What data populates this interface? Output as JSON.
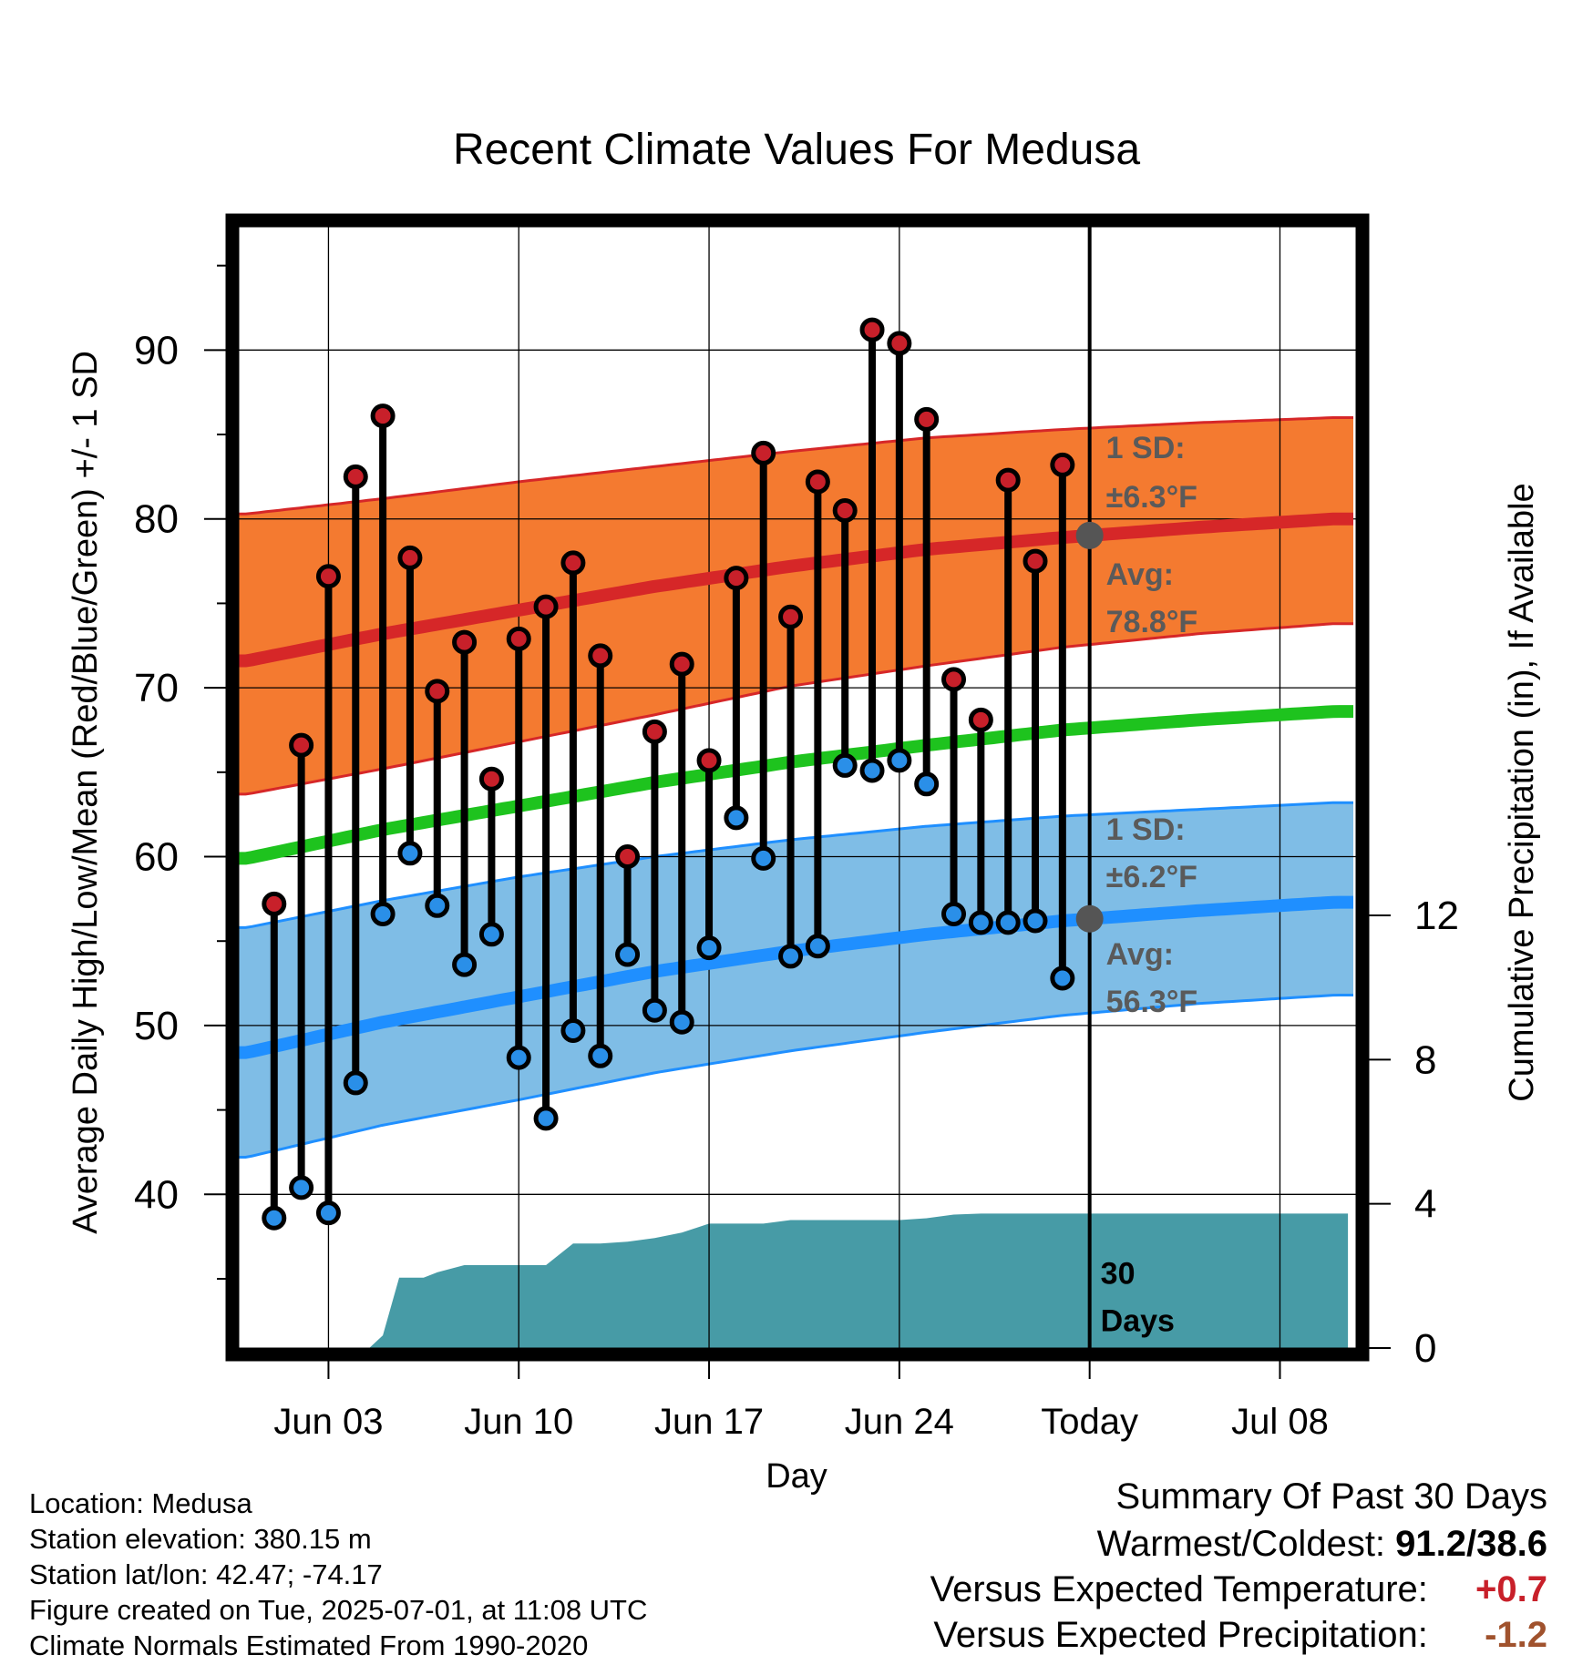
{
  "chart_data": {
    "type": "line",
    "title": "Recent Climate Values For Medusa",
    "xlabel": "Day",
    "ylabel": "Average Daily High/Low/Mean (Red/Blue/Green) +/- 1 SD",
    "y2label": "Cumulative Precipitation (in), If Available",
    "x_tick_labels": [
      "Jun 03",
      "Jun 10",
      "Jun 17",
      "Jun 24",
      "Today",
      "Jul 08"
    ],
    "x_tick_days": [
      3,
      10,
      17,
      24,
      31,
      38
    ],
    "x_range": [
      -0.3,
      40.8
    ],
    "ylim": [
      30.9,
      97.3
    ],
    "y_ticks": [
      40,
      50,
      60,
      70,
      80,
      90
    ],
    "y2lim": [
      0,
      31.1
    ],
    "y2_ticks": [
      0,
      4,
      8,
      12
    ],
    "grid": true,
    "today_day": 31,
    "observed_days": [
      1,
      2,
      3,
      4,
      5,
      6,
      7,
      8,
      9,
      10,
      11,
      12,
      13,
      14,
      15,
      16,
      17,
      18,
      19,
      20,
      21,
      22,
      23,
      24,
      25,
      26,
      27,
      28,
      29,
      30
    ],
    "observed_high": [
      57.2,
      66.6,
      76.6,
      82.5,
      86.1,
      77.7,
      69.8,
      72.7,
      64.6,
      72.9,
      74.8,
      77.4,
      71.9,
      60.0,
      67.4,
      71.4,
      65.7,
      76.5,
      83.9,
      74.2,
      82.2,
      80.5,
      91.2,
      90.4,
      85.9,
      70.5,
      68.1,
      82.3,
      77.5,
      83.2
    ],
    "observed_low": [
      38.6,
      40.4,
      38.9,
      46.6,
      56.6,
      60.2,
      57.1,
      53.6,
      55.4,
      48.1,
      44.5,
      49.7,
      48.2,
      54.2,
      50.9,
      50.2,
      54.6,
      62.3,
      59.9,
      54.1,
      54.7,
      65.4,
      65.1,
      65.7,
      64.3,
      56.6,
      56.1,
      56.1,
      56.2,
      52.8
    ],
    "normals": {
      "days": [
        0,
        5,
        10,
        15,
        20,
        25,
        30,
        35,
        40
      ],
      "avg_high": [
        71.6,
        73.2,
        74.6,
        76.0,
        77.2,
        78.2,
        78.9,
        79.5,
        80.0
      ],
      "avg_high_upper": [
        80.3,
        81.2,
        82.2,
        83.1,
        84.0,
        84.8,
        85.3,
        85.7,
        86.0
      ],
      "avg_high_lower": [
        63.7,
        65.2,
        66.8,
        68.4,
        70.1,
        71.3,
        72.4,
        73.2,
        73.8
      ],
      "avg_low": [
        48.4,
        50.2,
        51.7,
        53.2,
        54.4,
        55.4,
        56.2,
        56.8,
        57.3
      ],
      "avg_low_upper": [
        55.8,
        57.4,
        58.8,
        60.0,
        61.0,
        61.8,
        62.4,
        62.8,
        63.2
      ],
      "avg_low_lower": [
        42.2,
        44.1,
        45.6,
        47.2,
        48.5,
        49.6,
        50.6,
        51.3,
        51.8
      ],
      "avg_mean": [
        59.9,
        61.6,
        63.0,
        64.4,
        65.6,
        66.6,
        67.5,
        68.1,
        68.6
      ]
    },
    "precip_days": [
      0,
      4.5,
      5.0,
      5.6,
      6.0,
      6.5,
      7.0,
      8.0,
      9.0,
      10.0,
      11.0,
      12.0,
      13.0,
      14.0,
      15.0,
      16.0,
      17.0,
      18.0,
      19.0,
      20.0,
      21.0,
      22.0,
      23.0,
      24.0,
      25.0,
      26.0,
      27.0,
      28.0,
      29.0,
      30.0,
      31.0,
      40.5
    ],
    "precip_cum": [
      0,
      0,
      0.35,
      1.95,
      1.95,
      1.95,
      2.1,
      2.3,
      2.3,
      2.3,
      2.3,
      2.9,
      2.9,
      2.95,
      3.05,
      3.2,
      3.45,
      3.45,
      3.45,
      3.55,
      3.55,
      3.55,
      3.55,
      3.55,
      3.6,
      3.7,
      3.73,
      3.73,
      3.73,
      3.73,
      3.73,
      3.73
    ],
    "annotations": {
      "high_sd": "±6.3°F",
      "high_avg": "78.8°F",
      "low_sd": "±6.2°F",
      "low_avg": "56.3°F",
      "sd_label": "1 SD:",
      "avg_label": "Avg:",
      "window_count": "30",
      "window_unit": "Days"
    },
    "colors": {
      "high_band": "#f47a30",
      "high_line": "#d62728",
      "low_band": "#7fbde6",
      "low_line": "#1f8fff",
      "mean_line": "#1ec31e",
      "precip_fill": "#479ba6",
      "high_marker": "#c8202a",
      "low_marker": "#2a8fe8",
      "annotation": "#5a5a5a"
    }
  },
  "footer": {
    "location": "Location: Medusa",
    "elevation": "Station elevation: 380.15 m",
    "latlon": "Station lat/lon: 42.47; -74.17",
    "created": "Figure created on Tue, 2025-07-01, at 11:08 UTC",
    "normals": "Climate Normals Estimated From 1990-2020"
  },
  "summary": {
    "title": "Summary Of Past 30 Days",
    "warm_cold_label": "Warmest/Coldest:",
    "warm_cold_value": "91.2/38.6",
    "temp_label": "Versus Expected Temperature:",
    "temp_value": "+0.7",
    "temp_color": "#c8202a",
    "precip_label": "Versus Expected Precipitation:",
    "precip_value": "-1.2",
    "precip_color": "#a0522d"
  }
}
